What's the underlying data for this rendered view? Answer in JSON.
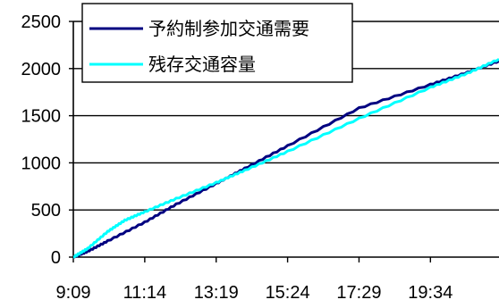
{
  "chart_data": {
    "type": "line",
    "title": "",
    "xlabel": "",
    "ylabel": "",
    "x_ticks": [
      "9:09",
      "11:14",
      "13:19",
      "15:24",
      "17:29",
      "19:34"
    ],
    "y_ticks": [
      0,
      500,
      1000,
      1500,
      2000,
      2500
    ],
    "ylim": [
      0,
      2500
    ],
    "x_range_minutes": [
      0,
      745
    ],
    "grid": "horizontal",
    "legend_position": "top-left",
    "series": [
      {
        "name": "予約制参加交通需要",
        "color": "#000080",
        "points": [
          [
            0,
            0
          ],
          [
            25,
            60
          ],
          [
            60,
            170
          ],
          [
            125,
            370
          ],
          [
            180,
            560
          ],
          [
            250,
            780
          ],
          [
            300,
            940
          ],
          [
            375,
            1180
          ],
          [
            500,
            1580
          ],
          [
            625,
            1830
          ],
          [
            690,
            1960
          ],
          [
            745,
            2080
          ]
        ]
      },
      {
        "name": "残存交通容量",
        "color": "#00ffff",
        "points": [
          [
            0,
            0
          ],
          [
            25,
            90
          ],
          [
            60,
            270
          ],
          [
            90,
            390
          ],
          [
            125,
            480
          ],
          [
            180,
            620
          ],
          [
            250,
            790
          ],
          [
            300,
            920
          ],
          [
            375,
            1120
          ],
          [
            500,
            1470
          ],
          [
            625,
            1800
          ],
          [
            690,
            1950
          ],
          [
            745,
            2100
          ]
        ]
      }
    ]
  }
}
